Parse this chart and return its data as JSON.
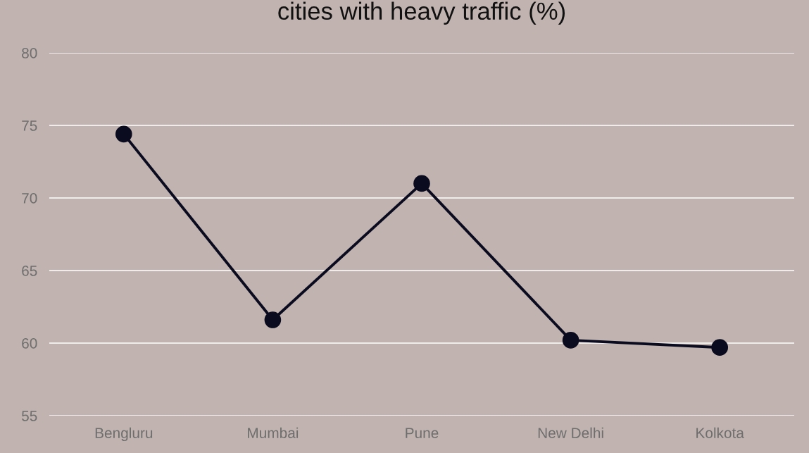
{
  "chart_data": {
    "type": "line",
    "title": "cities with heavy traffic (%)",
    "categories": [
      "Bengluru",
      "Mumbai",
      "Pune",
      "New Delhi",
      "Kolkota"
    ],
    "series": [
      {
        "color": "#0b0b1f",
        "values": [
          74.4,
          61.6,
          71.0,
          60.2,
          59.7
        ]
      }
    ],
    "ylim": [
      55,
      80
    ],
    "yticks": [
      55,
      60,
      65,
      70,
      75,
      80
    ],
    "grid": "y",
    "marker": "circle",
    "line_style": "solid"
  }
}
